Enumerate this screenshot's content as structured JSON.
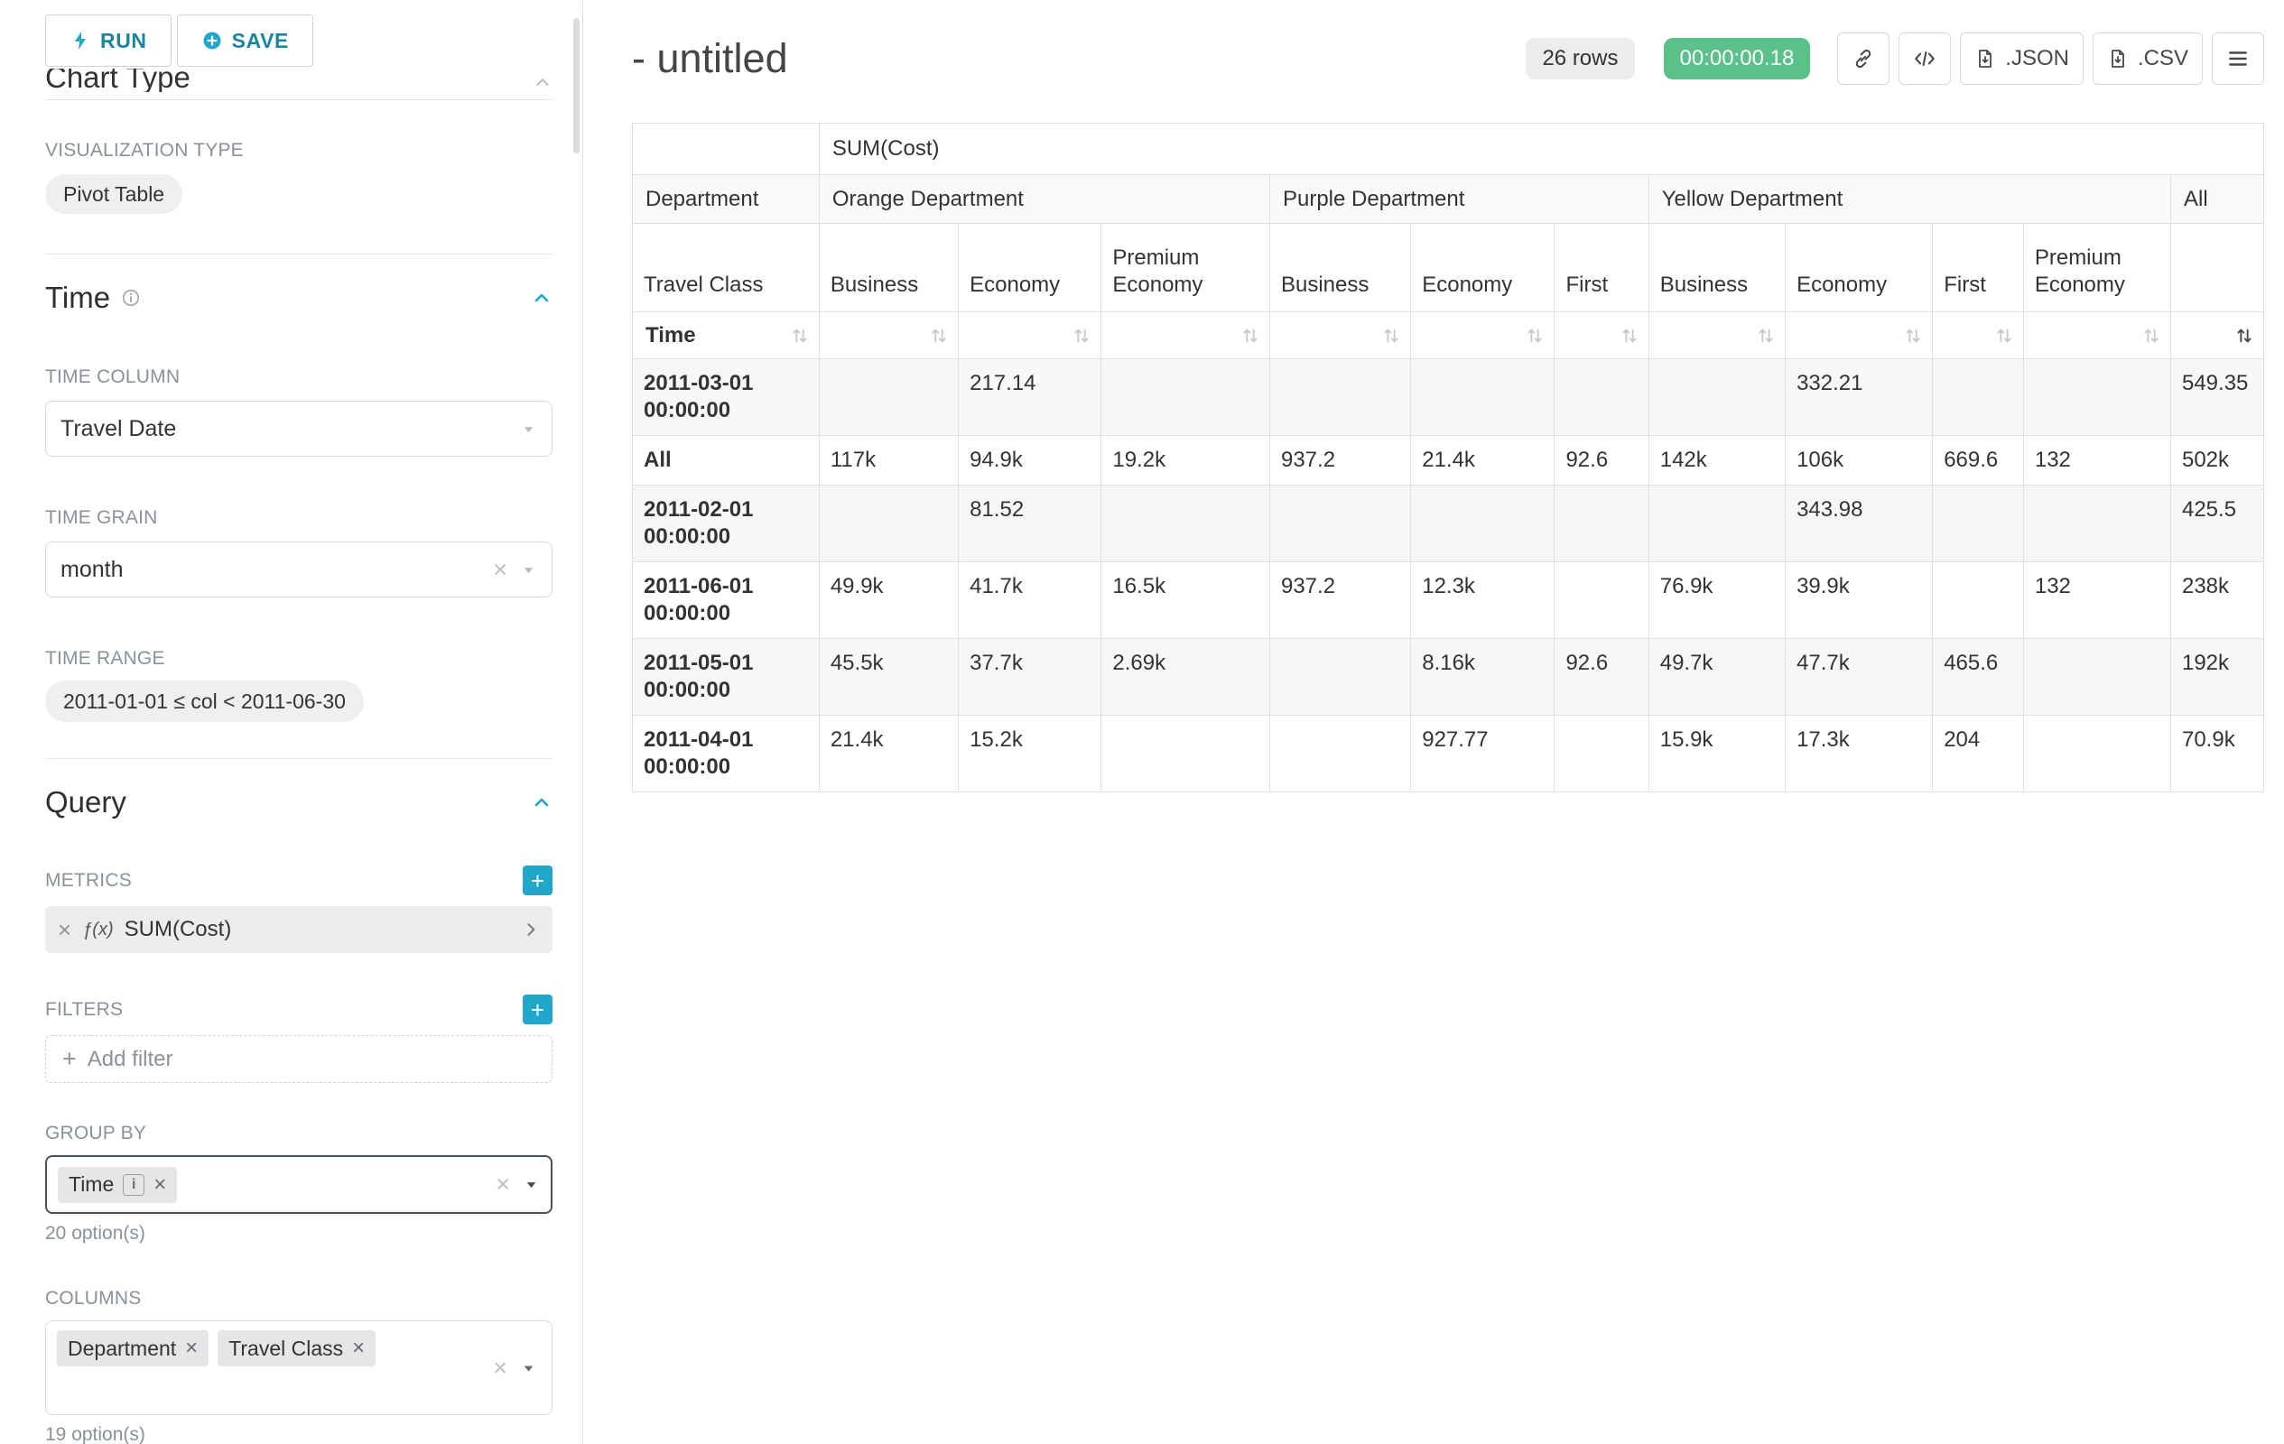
{
  "sidebar": {
    "run_label": "RUN",
    "save_label": "SAVE",
    "chart_type_heading": "Chart Type",
    "visualization_type_label": "VISUALIZATION TYPE",
    "visualization_type_value": "Pivot Table",
    "time": {
      "heading": "Time",
      "time_column_label": "TIME COLUMN",
      "time_column_value": "Travel Date",
      "time_grain_label": "TIME GRAIN",
      "time_grain_value": "month",
      "time_range_label": "TIME RANGE",
      "time_range_value": "2011-01-01 ≤ col < 2011-06-30"
    },
    "query": {
      "heading": "Query",
      "metrics_label": "METRICS",
      "metric_fx": "ƒ(x)",
      "metric_value": "SUM(Cost)",
      "filters_label": "FILTERS",
      "add_filter_label": "Add filter",
      "group_by_label": "GROUP BY",
      "group_by_pills": [
        "Time"
      ],
      "group_by_options_hint": "20 option(s)",
      "columns_label": "COLUMNS",
      "columns_pills": [
        "Department",
        "Travel Class"
      ],
      "columns_options_hint": "19 option(s)"
    }
  },
  "header": {
    "title": "- untitled",
    "rows_badge": "26 rows",
    "timer_badge": "00:00:00.18",
    "json_label": ".JSON",
    "csv_label": ".CSV"
  },
  "colors": {
    "primary": "#20a7c9",
    "success": "#5ac189"
  },
  "pivot": {
    "metric_header": "SUM(Cost)",
    "department_label": "Department",
    "travel_class_label": "Travel Class",
    "time_label": "Time",
    "col_groups": [
      {
        "label": "Orange Department",
        "cols": [
          "Business",
          "Economy",
          "Premium Economy"
        ]
      },
      {
        "label": "Purple Department",
        "cols": [
          "Business",
          "Economy",
          "First"
        ]
      },
      {
        "label": "Yellow Department",
        "cols": [
          "Business",
          "Economy",
          "First",
          "Premium Economy"
        ]
      },
      {
        "label": "All",
        "cols": [
          ""
        ]
      }
    ],
    "rows": [
      {
        "label": "2011-03-01 00:00:00",
        "values": [
          "",
          "217.14",
          "",
          "",
          "",
          "",
          "",
          "332.21",
          "",
          "",
          "549.35"
        ]
      },
      {
        "label": "All",
        "values": [
          "117k",
          "94.9k",
          "19.2k",
          "937.2",
          "21.4k",
          "92.6",
          "142k",
          "106k",
          "669.6",
          "132",
          "502k"
        ]
      },
      {
        "label": "2011-02-01 00:00:00",
        "values": [
          "",
          "81.52",
          "",
          "",
          "",
          "",
          "",
          "343.98",
          "",
          "",
          "425.5"
        ]
      },
      {
        "label": "2011-06-01 00:00:00",
        "values": [
          "49.9k",
          "41.7k",
          "16.5k",
          "937.2",
          "12.3k",
          "",
          "76.9k",
          "39.9k",
          "",
          "132",
          "238k"
        ]
      },
      {
        "label": "2011-05-01 00:00:00",
        "values": [
          "45.5k",
          "37.7k",
          "2.69k",
          "",
          "8.16k",
          "92.6",
          "49.7k",
          "47.7k",
          "465.6",
          "",
          "192k"
        ]
      },
      {
        "label": "2011-04-01 00:00:00",
        "values": [
          "21.4k",
          "15.2k",
          "",
          "",
          "927.77",
          "",
          "15.9k",
          "17.3k",
          "204",
          "",
          "70.9k"
        ]
      }
    ]
  }
}
